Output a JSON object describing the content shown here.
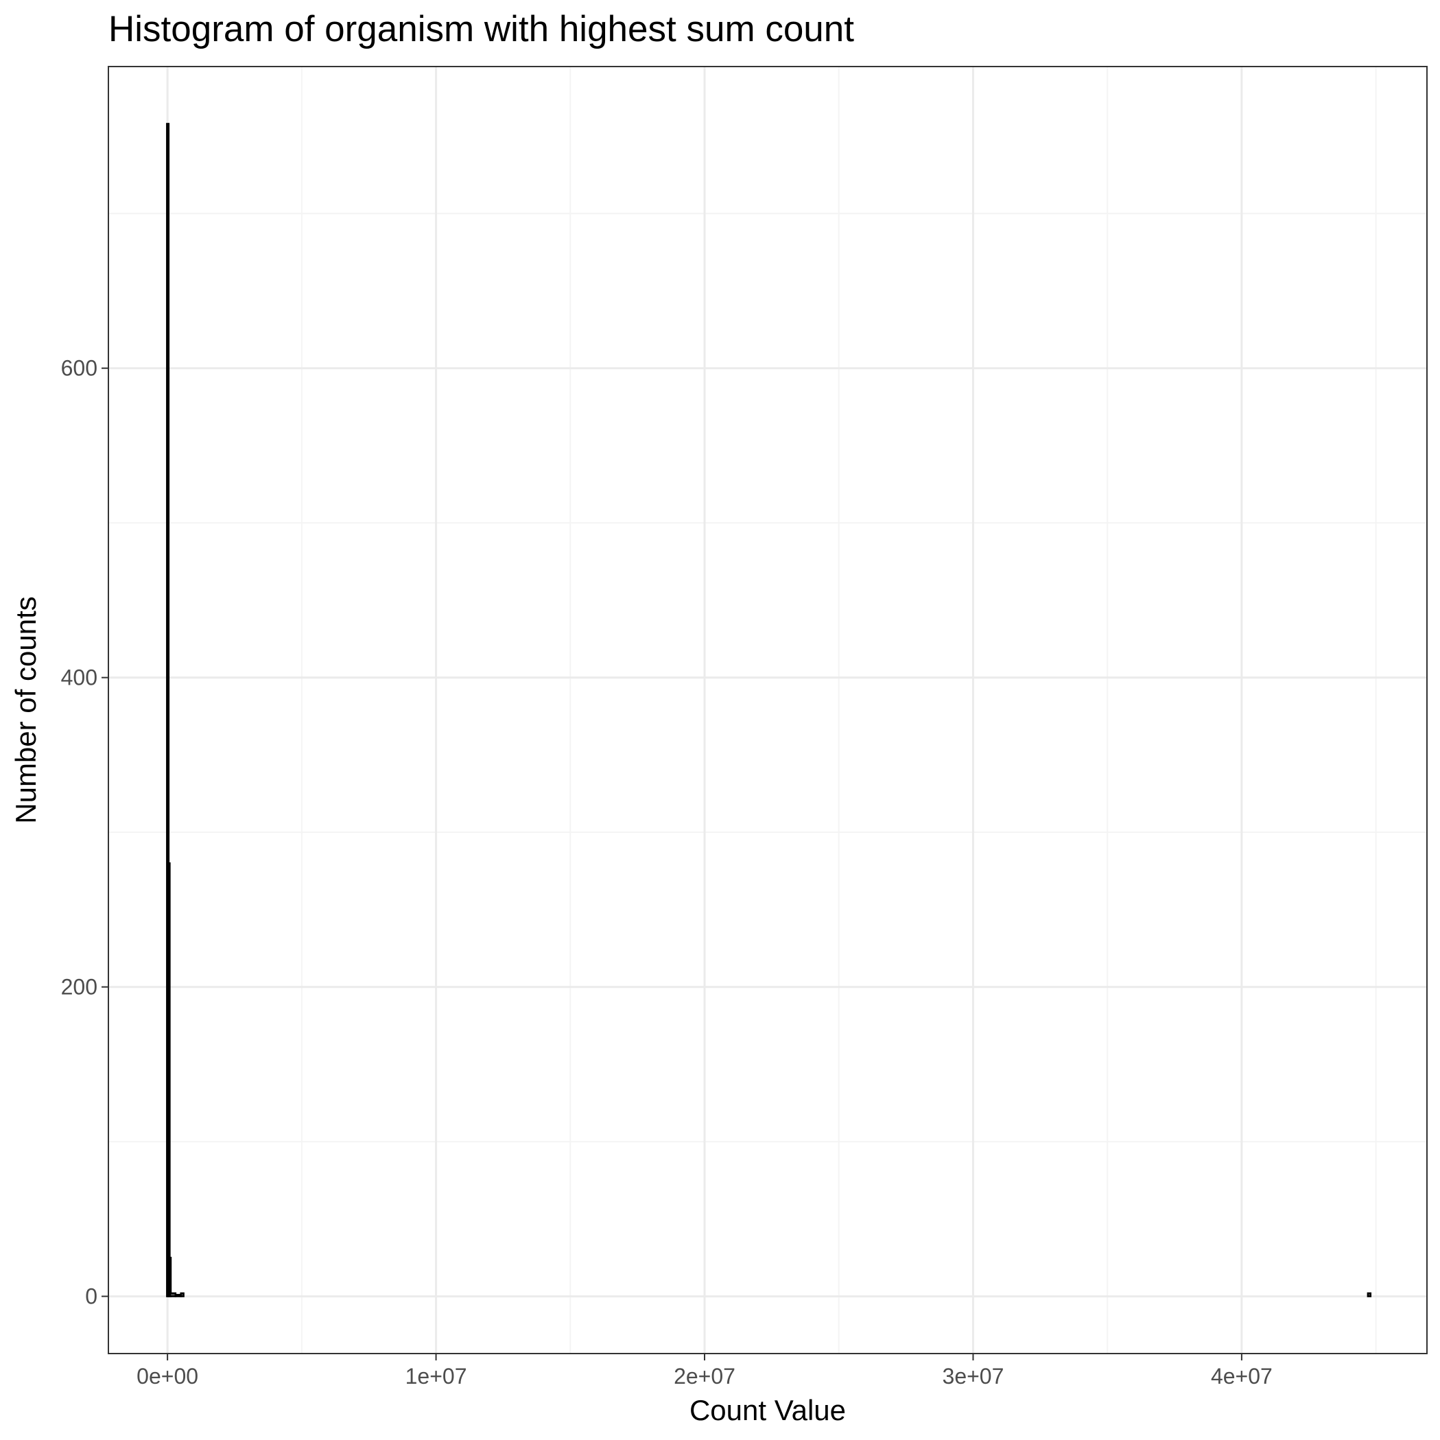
{
  "chart_data": {
    "type": "bar",
    "title": "Histogram of organism with highest sum count",
    "xlabel": "Count Value",
    "ylabel": "Number of counts",
    "xlim": [
      -2200000,
      46900000
    ],
    "ylim": [
      -37,
      795
    ],
    "x_ticks": [
      0,
      10000000,
      20000000,
      30000000,
      40000000
    ],
    "x_tick_labels": [
      "0e+00",
      "1e+07",
      "2e+07",
      "3e+07",
      "4e+07"
    ],
    "y_ticks": [
      0,
      200,
      400,
      600
    ],
    "y_tick_labels": [
      "0",
      "200",
      "400",
      "600"
    ],
    "grid": true,
    "legend": "none",
    "bars": [
      {
        "x0": -20000,
        "x1": 20000,
        "count": 758
      },
      {
        "x0": 20000,
        "x1": 60000,
        "count": 280
      },
      {
        "x0": 60000,
        "x1": 100000,
        "count": 25
      },
      {
        "x0": 100000,
        "x1": 300000,
        "count": 2
      },
      {
        "x0": 300000,
        "x1": 500000,
        "count": 1
      },
      {
        "x0": 500000,
        "x1": 600000,
        "count": 2
      },
      {
        "x0": 600000,
        "x1": 44700000,
        "count": 0
      },
      {
        "x0": 44700000,
        "x1": 44800000,
        "count": 2
      }
    ],
    "colors": {
      "bar_fill": "#595959",
      "bar_outline": "#000000",
      "panel_border": "#333333",
      "grid_major": "#ebebeb",
      "grid_minor": "#f4f4f4",
      "tick_text": "#4d4d4d"
    }
  }
}
